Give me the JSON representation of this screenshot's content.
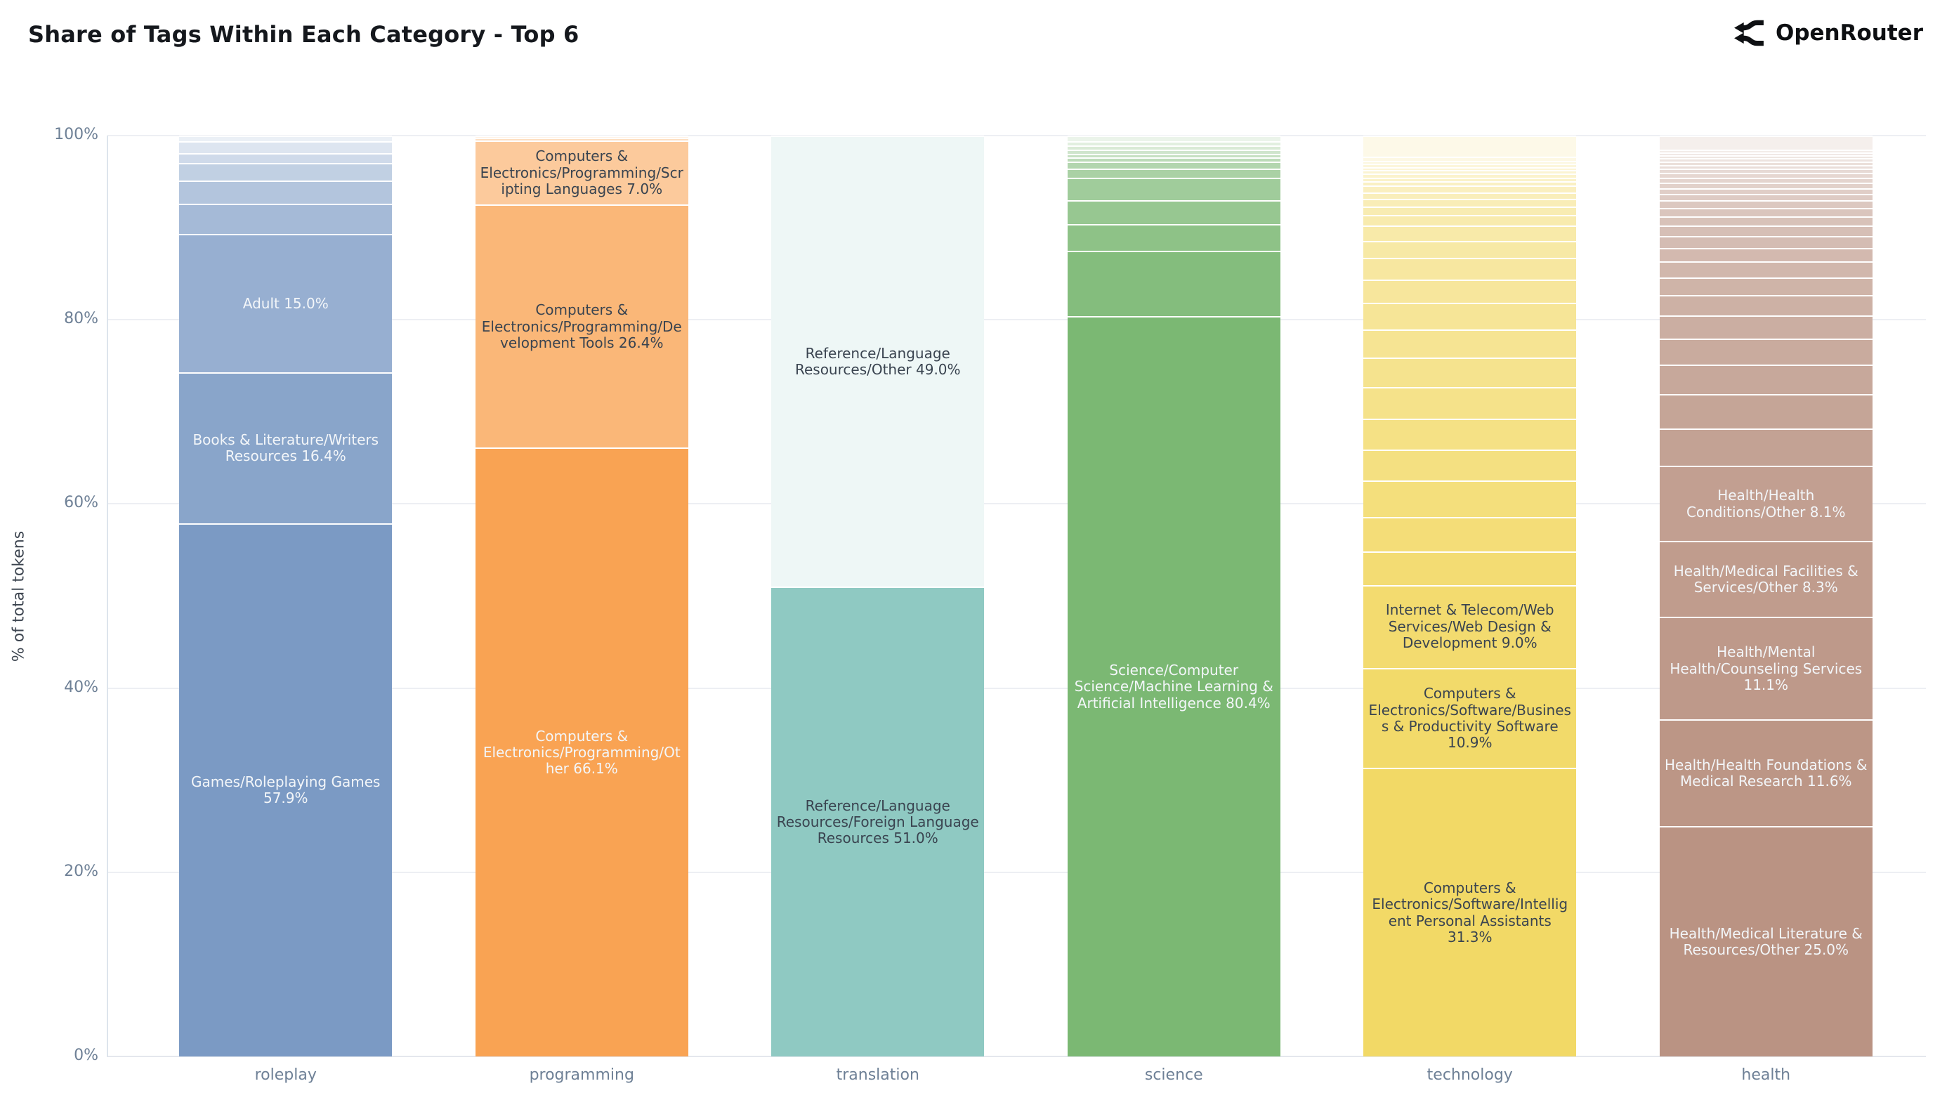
{
  "page": {
    "title": "Share of Tags Within Each Category - Top 6",
    "brand": "OpenRouter"
  },
  "y_axis": {
    "title": "% of total tokens",
    "ticks": [
      "0%",
      "20%",
      "40%",
      "60%",
      "80%",
      "100%"
    ]
  },
  "chart_data": {
    "type": "bar",
    "stacked": true,
    "normalized": "percent",
    "title": "Share of Tags Within Each Category - Top 6",
    "xlabel": "",
    "ylabel": "% of total tokens",
    "ylim": [
      0,
      100
    ],
    "grid": true,
    "legend": false,
    "categories": [
      "roleplay",
      "programming",
      "translation",
      "science",
      "technology",
      "health"
    ],
    "segment_order": "top_to_bottom",
    "unlabeled_note": "numeric entries are small unlabeled tag slices (% of total tokens)",
    "bars": [
      {
        "category": "roleplay",
        "color": "#7B9AC4",
        "segments": [
          0.6,
          1.3,
          1.1,
          1.9,
          2.5,
          3.3,
          {
            "label": "Adult",
            "value": 15.0,
            "display": "Adult 15.0%",
            "text": "light"
          },
          {
            "label": "Books & Literature/Writers Resources",
            "value": 16.4,
            "display": "Books & Literature/Writers Resources 16.4%",
            "text": "light"
          },
          {
            "label": "Games/Roleplaying Games",
            "value": 57.9,
            "display": "Games/Roleplaying Games 57.9%",
            "text": "light"
          }
        ]
      },
      {
        "category": "programming",
        "color": "#F9A353",
        "segments": [
          0.2,
          0.3,
          {
            "label": "Computers & Electronics/Programming/Scripting Languages",
            "value": 7.0,
            "display": "Computers & Electronics/Programming/Scripting Languages 7.0%",
            "text": "dark"
          },
          {
            "label": "Computers & Electronics/Programming/Development Tools",
            "value": 26.4,
            "display": "Computers & Electronics/Programming/Development Tools 26.4%",
            "text": "dark"
          },
          {
            "label": "Computers & Electronics/Programming/Other",
            "value": 66.1,
            "display": "Computers & Electronics/Programming/Other 66.1%",
            "text": "light"
          }
        ]
      },
      {
        "category": "translation",
        "color": "#8FC9C2",
        "segments": [
          {
            "label": "Reference/Language Resources/Other",
            "value": 49.0,
            "display": "Reference/Language Resources/Other 49.0%",
            "text": "dark"
          },
          {
            "label": "Reference/Language Resources/Foreign Language Resources",
            "value": 51.0,
            "display": "Reference/Language Resources/Foreign Language Resources 51.0%",
            "text": "dark"
          }
        ]
      },
      {
        "category": "science",
        "color": "#7BB873",
        "segments": [
          0.6,
          0.5,
          0.45,
          0.4,
          0.4,
          0.45,
          0.8,
          1.0,
          2.4,
          2.6,
          2.9,
          7.1,
          {
            "label": "Science/Computer Science/Machine Learning & Artificial Intelligence",
            "value": 80.4,
            "display": "Science/Computer Science/Machine Learning & Artificial Intelligence 80.4%",
            "text": "light"
          }
        ]
      },
      {
        "category": "technology",
        "color": "#F2D966",
        "segments": [
          2.3,
          0.45,
          0.3,
          0.35,
          0.35,
          0.4,
          0.4,
          0.45,
          0.45,
          0.7,
          0.7,
          0.85,
          0.95,
          1.15,
          1.65,
          1.8,
          2.4,
          2.55,
          2.85,
          3.1,
          3.2,
          3.4,
          3.35,
          3.4,
          3.9,
          3.8,
          3.6,
          {
            "label": "Internet & Telecom/Web Services/Web Design & Development",
            "value": 9.0,
            "display": "Internet & Telecom/Web Services/Web Design & Development 9.0%",
            "text": "dark"
          },
          {
            "label": "Computers & Electronics/Software/Business & Productivity Software",
            "value": 10.9,
            "display": "Computers & Electronics/Software/Business & Productivity Software 10.9%",
            "text": "dark"
          },
          {
            "label": "Computers & Electronics/Software/Intelligent Personal Assistants",
            "value": 31.3,
            "display": "Computers & Electronics/Software/Intelligent Personal Assistants 31.3%",
            "text": "dark"
          }
        ]
      },
      {
        "category": "health",
        "color": "#BA9383",
        "segments": [
          1.5,
          0.3,
          0.3,
          0.35,
          0.35,
          0.4,
          0.4,
          0.45,
          0.5,
          0.55,
          0.6,
          0.65,
          0.7,
          0.8,
          0.9,
          1.0,
          1.15,
          1.3,
          1.5,
          1.7,
          1.95,
          2.2,
          2.5,
          2.85,
          3.2,
          3.7,
          4.1,
          {
            "label": "Health/Health Conditions/Other",
            "value": 8.1,
            "display": "Health/Health Conditions/Other 8.1%",
            "text": "light"
          },
          {
            "label": "Health/Medical Facilities & Services/Other",
            "value": 8.3,
            "display": "Health/Medical Facilities & Services/Other 8.3%",
            "text": "light"
          },
          {
            "label": "Health/Mental Health/Counseling Services",
            "value": 11.1,
            "display": "Health/Mental Health/Counseling Services 11.1%",
            "text": "light"
          },
          {
            "label": "Health/Health Foundations & Medical Research",
            "value": 11.6,
            "display": "Health/Health Foundations & Medical Research 11.6%",
            "text": "light"
          },
          {
            "label": "Health/Medical Literature & Resources/Other",
            "value": 25.0,
            "display": "Health/Medical Literature & Resources/Other 25.0%",
            "text": "light"
          }
        ]
      }
    ]
  }
}
